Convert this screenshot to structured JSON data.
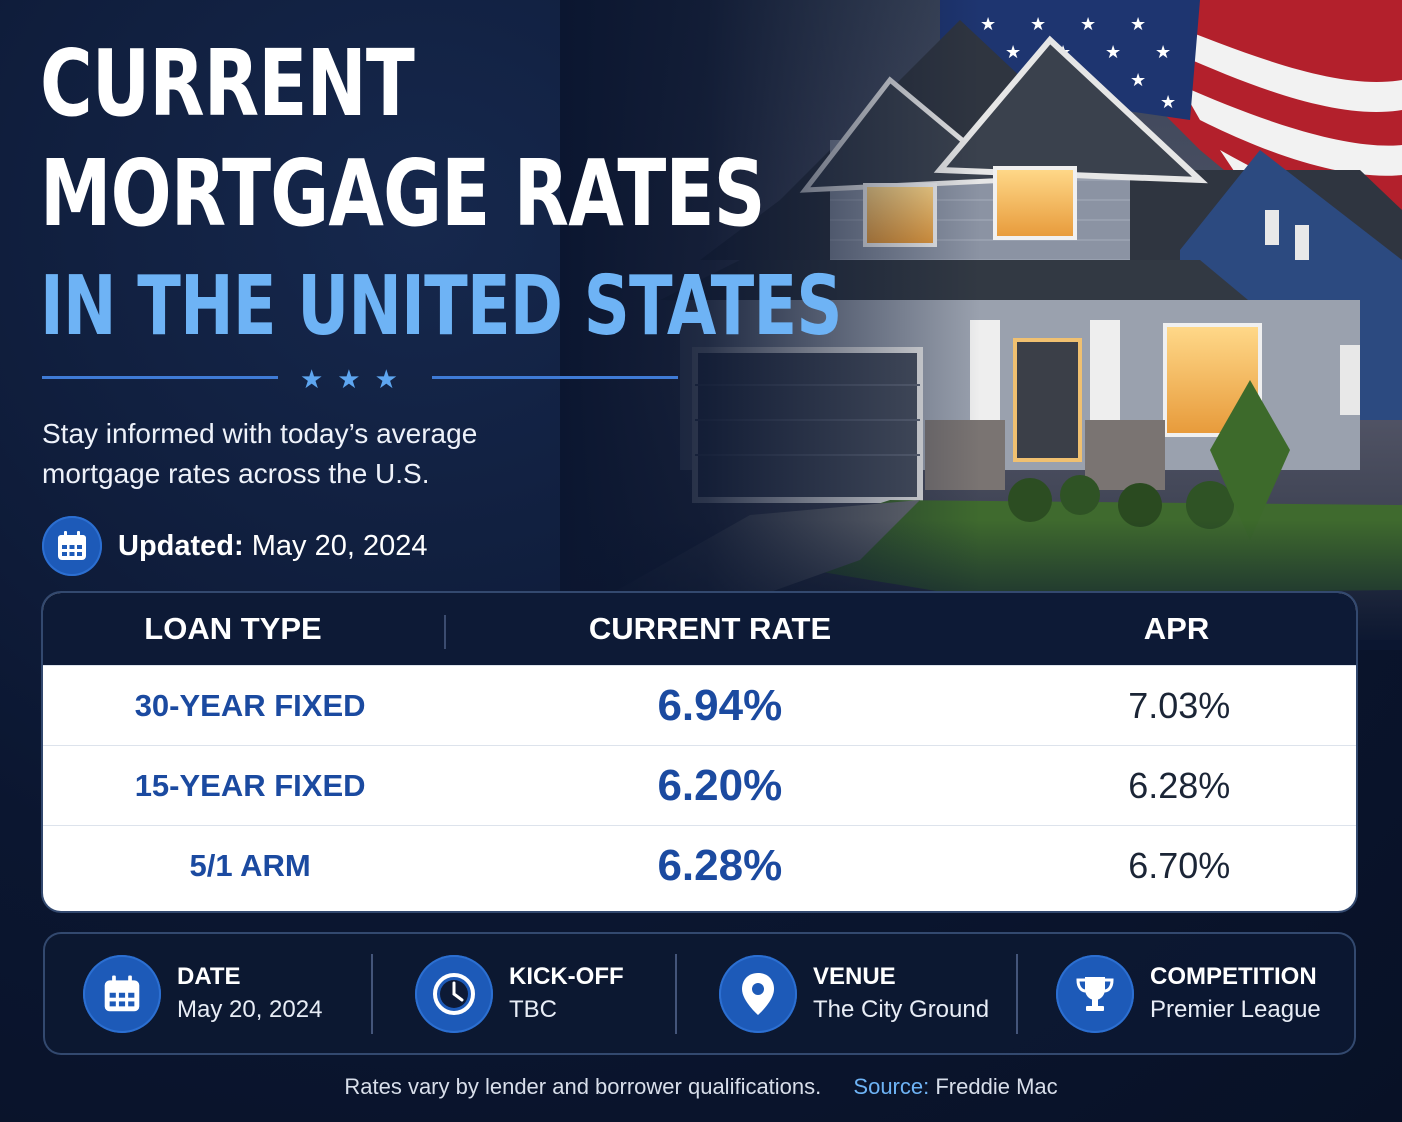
{
  "headline": {
    "line1": "CURRENT",
    "line2": "MORTGAGE RATES",
    "line3": "IN THE UNITED STATES"
  },
  "divider_stars": "★★★",
  "subtitle": "Stay informed with today’s average mortgage rates across the U.S.",
  "updated": {
    "label": "Updated:",
    "value": "May 20, 2024",
    "icon": "calendar-icon"
  },
  "table": {
    "headers": [
      "LOAN TYPE",
      "CURRENT RATE",
      "APR"
    ],
    "rows": [
      {
        "loan_type": "30-YEAR FIXED",
        "rate": "6.94%",
        "apr": "7.03%"
      },
      {
        "loan_type": "15-YEAR FIXED",
        "rate": "6.20%",
        "apr": "6.28%"
      },
      {
        "loan_type": "5/1 ARM",
        "rate": "6.28%",
        "apr": "6.70%"
      }
    ]
  },
  "info": [
    {
      "label": "DATE",
      "value": "May 20, 2024",
      "icon": "calendar-icon"
    },
    {
      "label": "KICK-OFF",
      "value": "TBC",
      "icon": "clock-icon"
    },
    {
      "label": "VENUE",
      "value": "The City Ground",
      "icon": "location-pin-icon"
    },
    {
      "label": "COMPETITION",
      "value": "Premier League",
      "icon": "trophy-icon"
    }
  ],
  "footer": {
    "note": "Rates vary by lender and borrower qualifications.",
    "source_label": "Source:",
    "source_value": "Freddie Mac"
  },
  "colors": {
    "background": "#0b1630",
    "accent_blue": "#6eb3f5",
    "rate_blue": "#1b4aa0",
    "icon_circle": "#1d5ab8"
  }
}
